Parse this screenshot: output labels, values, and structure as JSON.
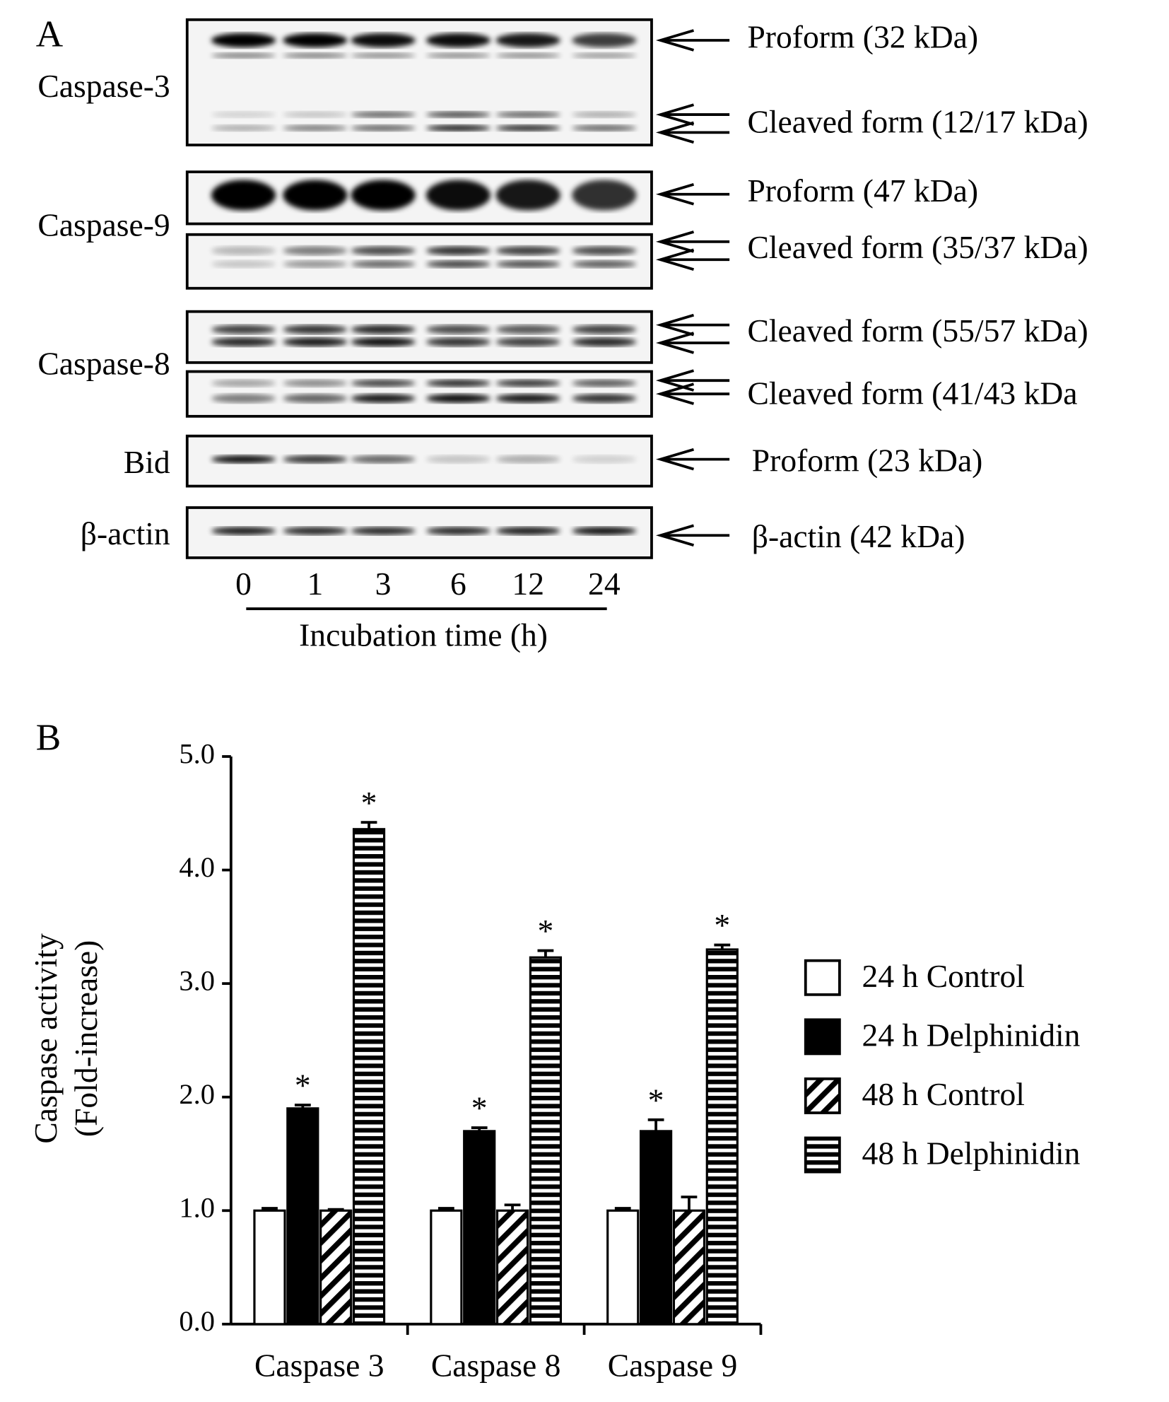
{
  "panel_a": {
    "label": "A",
    "rows": [
      "Caspase-3",
      "Caspase-9",
      "Caspase-8",
      "Bid",
      "β-actin"
    ],
    "bands": [
      "Proform (32 kDa)",
      "Cleaved form (12/17 kDa)",
      "Proform (47 kDa)",
      "Cleaved form (35/37 kDa)",
      "Cleaved form (55/57 kDa)",
      "Cleaved form (41/43 kDa",
      "Proform (23 kDa)",
      "β-actin (42 kDa)"
    ],
    "lanes": [
      "0",
      "1",
      "3",
      "6",
      "12",
      "24"
    ],
    "xlabel": "Incubation time (h)"
  },
  "chart_data": {
    "type": "bar",
    "label": "B",
    "ylabel": [
      "Caspase activity",
      "(Fold-increase)"
    ],
    "categories": [
      "Caspase 3",
      "Caspase 8",
      "Caspase 9"
    ],
    "series": [
      {
        "name": "24 h Control",
        "color": "#ffffff",
        "pattern": "none",
        "values": [
          1.0,
          1.0,
          1.0
        ],
        "errors": [
          0.02,
          0.02,
          0.02
        ]
      },
      {
        "name": "24 h Delphinidin",
        "color": "#000000",
        "pattern": "solid",
        "values": [
          1.9,
          1.7,
          1.7
        ],
        "errors": [
          0.03,
          0.03,
          0.1
        ],
        "annotations": [
          "*",
          "*",
          "*"
        ]
      },
      {
        "name": "48 h Control",
        "color": "#000000",
        "pattern": "diagonal",
        "values": [
          1.0,
          1.0,
          1.0
        ],
        "errors": [
          0.01,
          0.05,
          0.12
        ]
      },
      {
        "name": "48 h Delphinidin",
        "color": "#000000",
        "pattern": "horizontal",
        "values": [
          4.36,
          3.23,
          3.3
        ],
        "errors": [
          0.06,
          0.06,
          0.04
        ],
        "annotations": [
          "*",
          "*",
          "*"
        ]
      }
    ],
    "ylim": [
      0,
      5
    ],
    "yticks": [
      {
        "value": 0,
        "label": "0.0"
      },
      {
        "value": 1,
        "label": "1.0"
      },
      {
        "value": 2,
        "label": "2.0"
      },
      {
        "value": 3,
        "label": "3.0"
      },
      {
        "value": 4,
        "label": "4.0"
      },
      {
        "value": 5,
        "label": "5.0"
      }
    ],
    "legend": "right"
  }
}
